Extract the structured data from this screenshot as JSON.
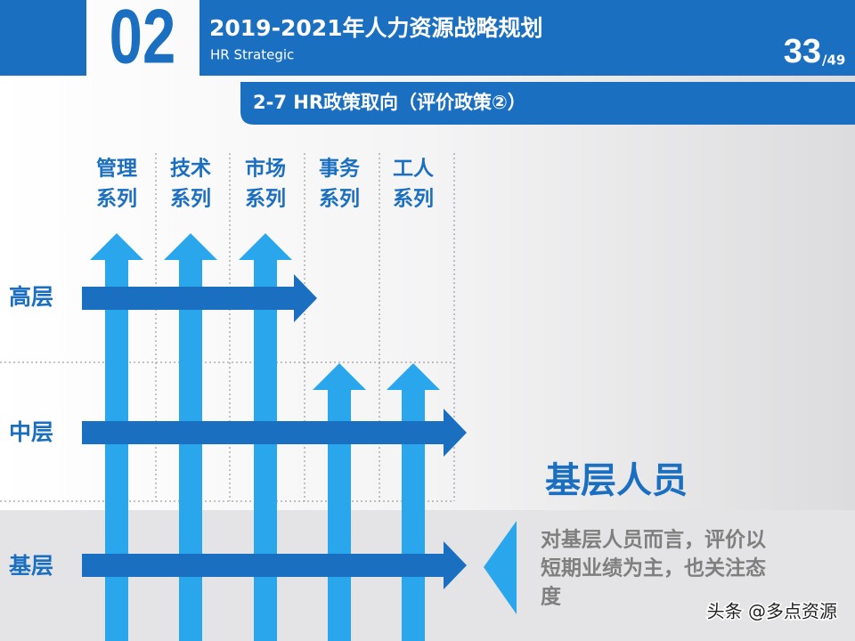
{
  "header": {
    "section_number": "02",
    "title": "2019-2021年人力资源战略规划",
    "subtitle": "HR Strategic",
    "page": "33",
    "page_total": "/49"
  },
  "section_bar": {
    "title": "2-7  HR政策取向（评价政策②）"
  },
  "columns": [
    [
      "管理",
      "系列"
    ],
    [
      "技术",
      "系列"
    ],
    [
      "市场",
      "系列"
    ],
    [
      "事务",
      "系列"
    ],
    [
      "工人",
      "系列"
    ]
  ],
  "rows": [
    "高层",
    "中层",
    "基层"
  ],
  "callout": {
    "heading": "基层人员",
    "lines": [
      "对基层人员而言，评价以",
      "短期业绩为主，也关注态",
      "度"
    ]
  },
  "watermark": "头条 @多点资源"
}
